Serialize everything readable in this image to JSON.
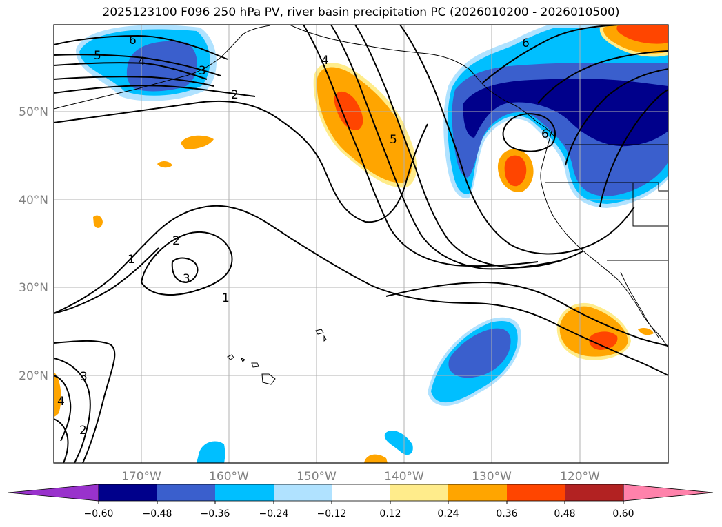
{
  "title": "2025123100 F096 250 hPa PV, river basin precipitation PC (2026010200 - 2026010500)",
  "lat_labels": [
    "50°N",
    "40°N",
    "30°N",
    "20°N"
  ],
  "lon_labels": [
    "170°W",
    "160°W",
    "150°W",
    "140°W",
    "130°W",
    "120°W"
  ],
  "contour_labels": [
    "6",
    "5",
    "4",
    "3",
    "2",
    "5",
    "4",
    "6",
    "6",
    "2",
    "3",
    "1",
    "1",
    "3",
    "4",
    "2"
  ],
  "colorbar": {
    "ticks": [
      "−0.60",
      "−0.48",
      "−0.36",
      "−0.24",
      "−0.12",
      "0.12",
      "0.24",
      "0.36",
      "0.48",
      "0.60"
    ],
    "colors": [
      "#9932cc",
      "#00008b",
      "#3a5fcd",
      "#00bfff",
      "#b0e2ff",
      "#ffffff",
      "#ffec8b",
      "#ffa500",
      "#ff4500",
      "#b22222",
      "#ff82ab"
    ]
  }
}
